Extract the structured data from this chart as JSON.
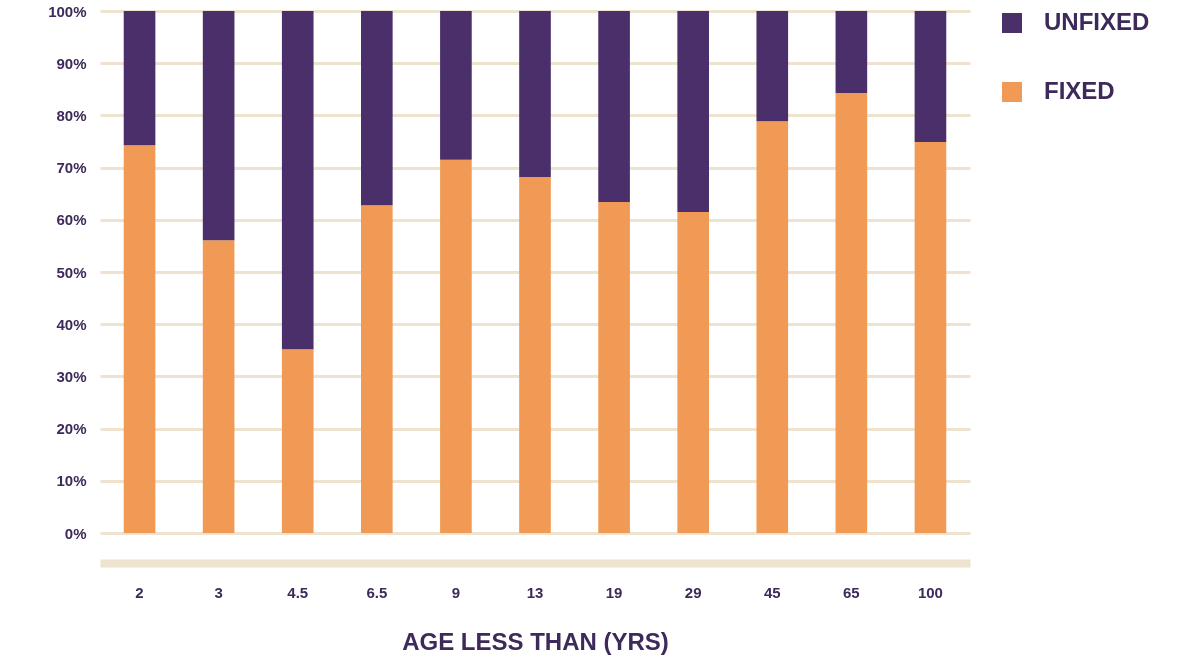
{
  "chart_data": {
    "type": "bar",
    "stacked": true,
    "xlabel": "AGE LESS THAN (YRS)",
    "categories": [
      "2",
      "3",
      "4.5",
      "6.5",
      "9",
      "13",
      "19",
      "29",
      "45",
      "65",
      "100"
    ],
    "series": [
      {
        "name": "FIXED",
        "color": "#f09a55",
        "values": [
          74.3,
          56.1,
          35.2,
          62.8,
          71.5,
          68.2,
          63.4,
          61.5,
          78.9,
          84.3,
          74.9
        ]
      },
      {
        "name": "UNFIXED",
        "color": "#4a2f6a",
        "values": [
          25.7,
          43.9,
          64.8,
          37.2,
          28.5,
          31.8,
          36.6,
          38.5,
          21.1,
          15.7,
          25.1
        ]
      }
    ],
    "ylim": [
      0,
      100
    ],
    "yticks": [
      {
        "value": 0,
        "label": "0%"
      },
      {
        "value": 10,
        "label": "10%"
      },
      {
        "value": 20,
        "label": "20%"
      },
      {
        "value": 30,
        "label": "30%"
      },
      {
        "value": 40,
        "label": "40%"
      },
      {
        "value": 50,
        "label": "50%"
      },
      {
        "value": 60,
        "label": "60%"
      },
      {
        "value": 70,
        "label": "70%"
      },
      {
        "value": 80,
        "label": "80%"
      },
      {
        "value": 90,
        "label": "90%"
      },
      {
        "value": 100,
        "label": "100%"
      }
    ],
    "grid": "y",
    "legend": "right"
  }
}
